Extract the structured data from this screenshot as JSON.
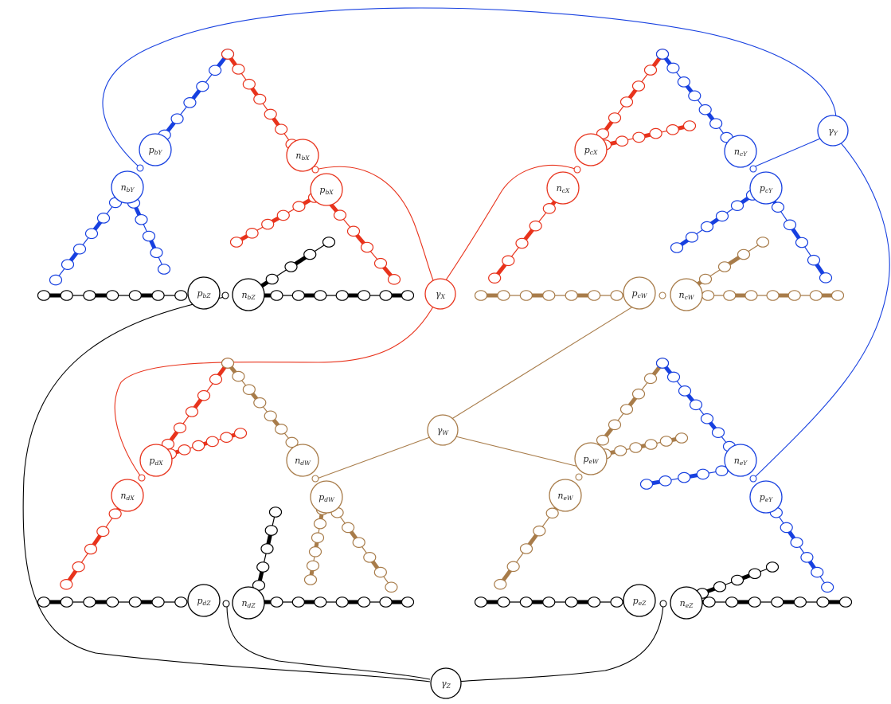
{
  "colors": {
    "red": "#e8331c",
    "blue": "#1740e0",
    "black": "#000000",
    "brown": "#a87c4a"
  },
  "gammas": [
    {
      "id": "X",
      "label": "γX",
      "color": "red"
    },
    {
      "id": "Y",
      "label": "γY",
      "color": "blue"
    },
    {
      "id": "W",
      "label": "γW",
      "color": "brown"
    },
    {
      "id": "Z",
      "label": "γZ",
      "color": "black"
    }
  ],
  "gadgets": [
    {
      "id": "b",
      "labels": {
        "pY": "pbY",
        "nY": "nbY",
        "nX": "nbX",
        "pX": "pbX",
        "pZ": "pbZ",
        "nZ": "nbZ"
      }
    },
    {
      "id": "c",
      "labels": {
        "pX": "pcX",
        "nX": "ncX",
        "nY": "ncY",
        "pY": "pcY",
        "pW": "pcW",
        "nW": "ncW"
      }
    },
    {
      "id": "d",
      "labels": {
        "pX": "pdX",
        "nX": "ndX",
        "nW": "ndW",
        "pW": "pdW",
        "pZ": "pdZ",
        "nZ": "ndZ"
      }
    },
    {
      "id": "e",
      "labels": {
        "pW": "peW",
        "nW": "neW",
        "nY": "neY",
        "pY": "peY",
        "pZ": "peZ",
        "nZ": "neZ"
      }
    }
  ]
}
